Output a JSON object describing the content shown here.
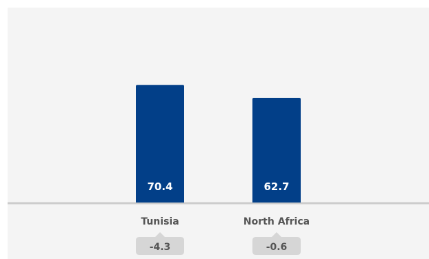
{
  "chart_data": {
    "type": "bar",
    "categories": [
      "Tunisia",
      "North Africa"
    ],
    "values": [
      70.4,
      62.7
    ],
    "data_labels": [
      "70.4",
      "62.7"
    ],
    "changes": [
      "-4.3",
      "-0.6"
    ],
    "title": "",
    "xlabel": "",
    "ylabel": "",
    "ylim": [
      0,
      80
    ],
    "grid": false,
    "legend": "none",
    "colors": {
      "bar": "#023F88",
      "baseline": "#cccccc",
      "panel": "#f4f4f4",
      "change_badge": "#d6d6d6",
      "label_text": "#555555",
      "value_text": "#ffffff"
    }
  }
}
